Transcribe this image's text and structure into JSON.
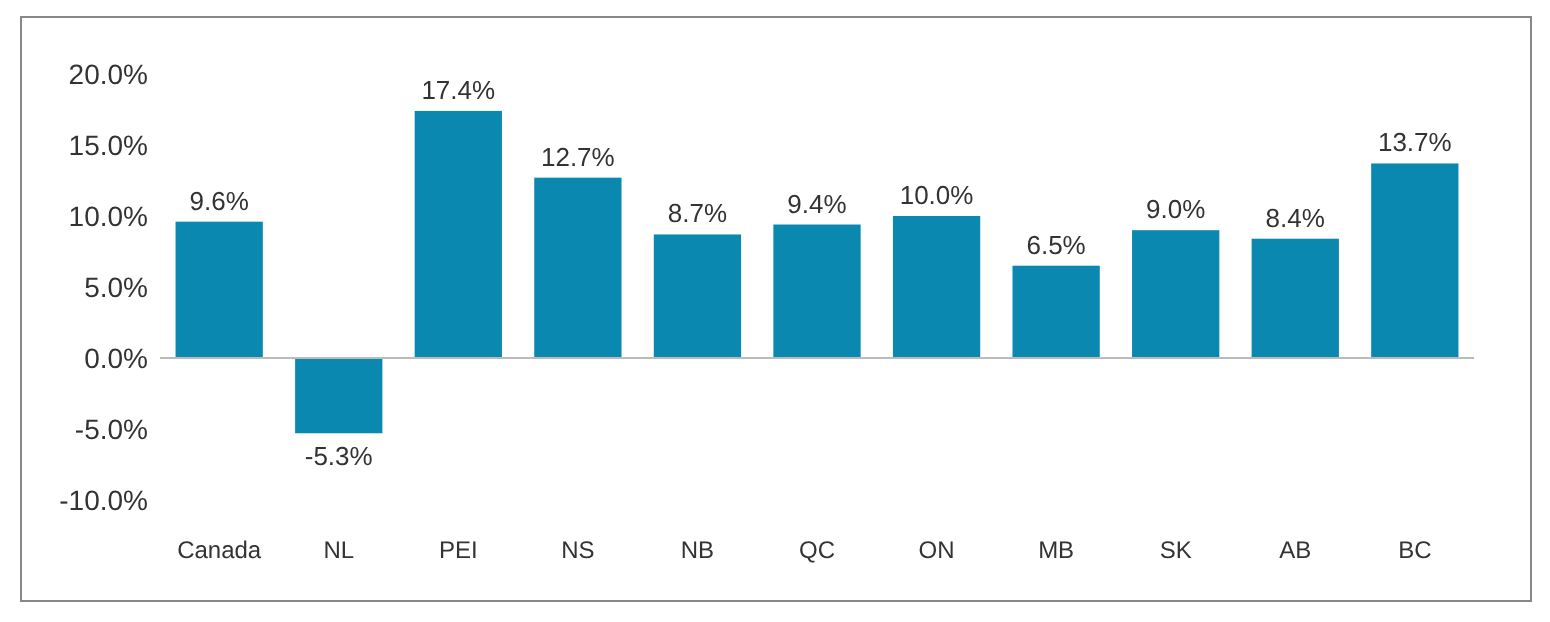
{
  "chart_data": {
    "type": "bar",
    "categories": [
      "Canada",
      "NL",
      "PEI",
      "NS",
      "NB",
      "QC",
      "ON",
      "MB",
      "SK",
      "AB",
      "BC"
    ],
    "values": [
      9.6,
      -5.3,
      17.4,
      12.7,
      8.7,
      9.4,
      10.0,
      6.5,
      9.0,
      8.4,
      13.7
    ],
    "value_labels": [
      "9.6%",
      "-5.3%",
      "17.4%",
      "12.7%",
      "8.7%",
      "9.4%",
      "10.0%",
      "6.5%",
      "9.0%",
      "8.4%",
      "13.7%"
    ],
    "color": "#0a88b0",
    "ylim": [
      -10,
      20
    ],
    "yticks": [
      {
        "value": -10,
        "label": "-10.0%"
      },
      {
        "value": -5,
        "label": "-5.0%"
      },
      {
        "value": 0,
        "label": "0.0%"
      },
      {
        "value": 5,
        "label": "5.0%"
      },
      {
        "value": 10,
        "label": "10.0%"
      },
      {
        "value": 15,
        "label": "15.0%"
      },
      {
        "value": 20,
        "label": "20.0%"
      }
    ]
  }
}
